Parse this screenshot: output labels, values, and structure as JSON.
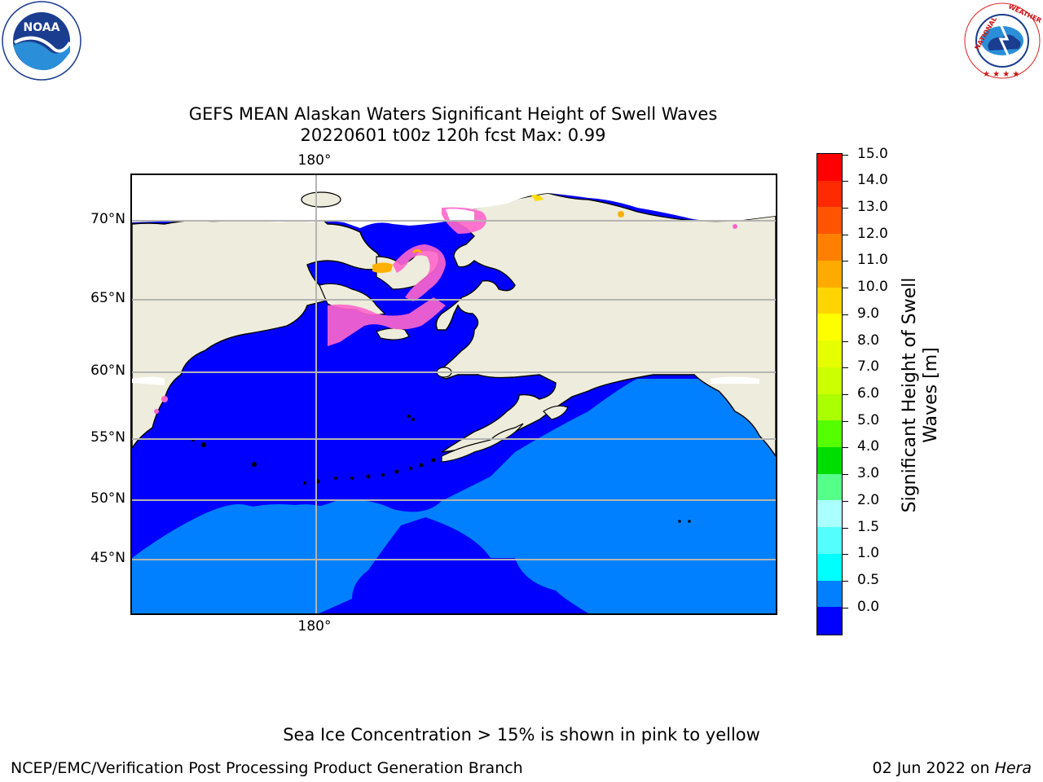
{
  "header": {
    "title_line1": "GEFS MEAN Alaskan Waters Significant Height of Swell Waves",
    "title_line2": "20220601 t00z 120h fcst   Max: 0.99"
  },
  "logos": {
    "noaa": "NOAA",
    "noaa_ring_text": "NATIONAL OCEANIC AND ATMOSPHERIC ADMINISTRATION · U.S. DEPARTMENT OF COMMERCE",
    "nws_ring_text": "NATIONAL WEATHER SERVICE"
  },
  "map": {
    "lat_labels": [
      "70°N",
      "65°N",
      "60°N",
      "55°N",
      "50°N",
      "45°N"
    ],
    "lon_label_top": "180°",
    "lon_label_bottom": "180°",
    "colors": {
      "land": "#eeecdc",
      "water_low": "#0000ff",
      "water_mid": "#0080ff",
      "ice": "#ff66cc",
      "ice_edge": "#ffb000",
      "grid": "#b4b4b4"
    }
  },
  "colorbar": {
    "title_line1": "Significant Height of Swell",
    "title_line2": "Waves [m]",
    "ticks": [
      "15.0",
      "14.0",
      "13.0",
      "12.0",
      "11.0",
      "10.0",
      "9.0",
      "8.0",
      "7.0",
      "6.0",
      "5.0",
      "4.0",
      "3.0",
      "2.0",
      "1.5",
      "1.0",
      "0.5",
      "0.0"
    ],
    "colors_top_to_bottom": [
      "#ff0000",
      "#ff2a00",
      "#ff5500",
      "#ff8000",
      "#ffaa00",
      "#ffd500",
      "#ffff00",
      "#e6ff00",
      "#ccff00",
      "#aaff00",
      "#55ff00",
      "#00dd00",
      "#55ff88",
      "#aaffff",
      "#55ffff",
      "#00ffff",
      "#0080ff",
      "#0000ff"
    ]
  },
  "footer": {
    "note": "Sea Ice Concentration > 15% is shown in pink to yellow",
    "branch": "NCEP/EMC/Verification Post Processing Product Generation Branch",
    "date": "02 Jun 2022 on ",
    "machine": "Hera"
  }
}
